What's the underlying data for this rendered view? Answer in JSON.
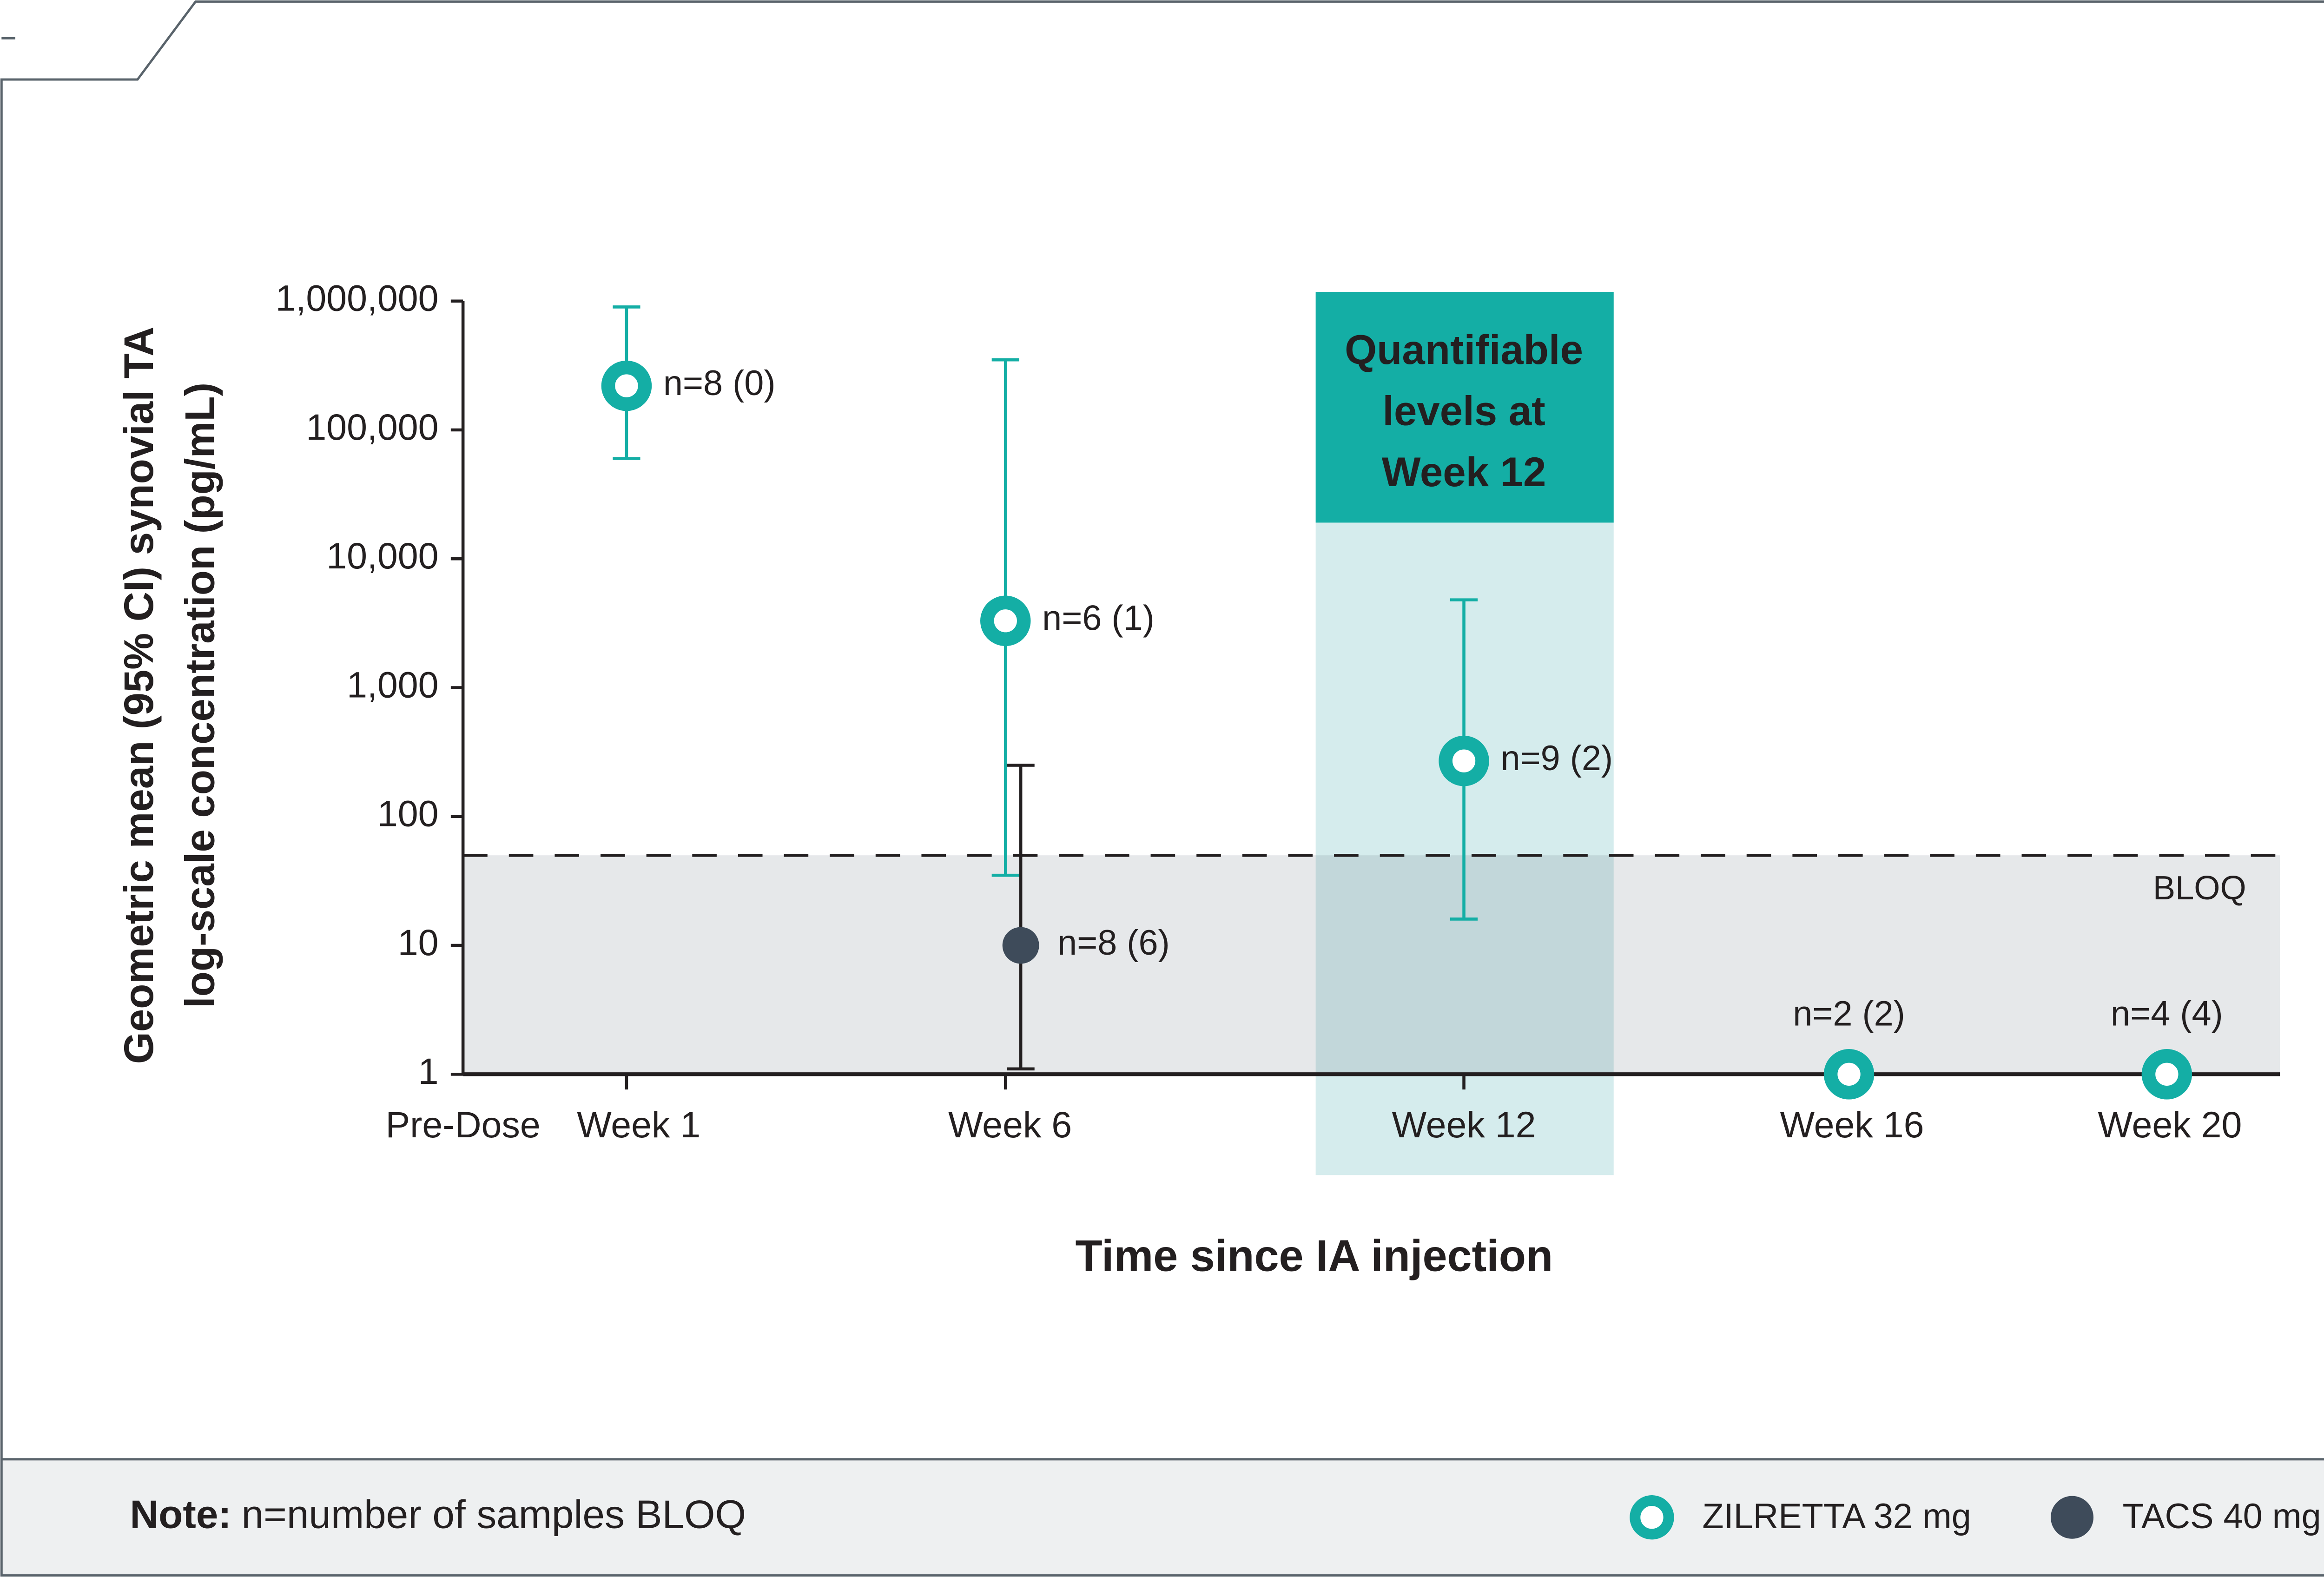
{
  "chart_data": {
    "type": "scatter",
    "y_label": [
      "Geometric mean (95% CI) synovial TA",
      "log-scale concentration (pg/mL)"
    ],
    "x_label": "Time since IA injection",
    "categories": [
      "Pre-Dose",
      "Week 1",
      "Week 6",
      "Week 12",
      "Week 16",
      "Week 20"
    ],
    "log_y": true,
    "ylim": [
      1,
      1000000
    ],
    "yticks": [
      1,
      10,
      100,
      {
        "value": 1000,
        "label": "1,000"
      },
      {
        "value": 10000,
        "label": "10,000"
      },
      {
        "value": 100000,
        "label": "100,000"
      },
      {
        "value": 1000000,
        "label": "1,000,000"
      }
    ],
    "series": [
      {
        "name": "ZILRETTA 32 mg",
        "color": "#14aea5",
        "marker": "ring",
        "values": [
          null,
          220000,
          3300,
          270,
          1,
          1
        ],
        "ci_low": [
          null,
          60000,
          35,
          16,
          null,
          null
        ],
        "ci_high": [
          null,
          900000,
          350000,
          4800,
          null,
          null
        ],
        "point_labels": [
          null,
          "n=8 (0)",
          "n=6 (1)",
          "n=9 (2)",
          "n=2 (2)",
          "n=4 (4)"
        ]
      },
      {
        "name": "TACS 40 mg",
        "color": "#3e4b5a",
        "marker": "dot",
        "values": [
          null,
          null,
          10,
          null,
          null,
          null
        ],
        "ci_low": [
          null,
          null,
          1.1,
          null,
          null,
          null
        ],
        "ci_high": [
          null,
          null,
          250,
          null,
          null,
          null
        ],
        "point_labels": [
          null,
          null,
          "n=8 (6)",
          null,
          null,
          null
        ]
      }
    ],
    "reference_line": {
      "value": 50,
      "label": "BLOQ"
    },
    "highlight": {
      "category": "Week 12",
      "lines": [
        "Quantifiable",
        "levels at",
        "Week 12"
      ]
    },
    "note": {
      "label": "Note:",
      "text": "n=number of samples BLOQ"
    }
  }
}
